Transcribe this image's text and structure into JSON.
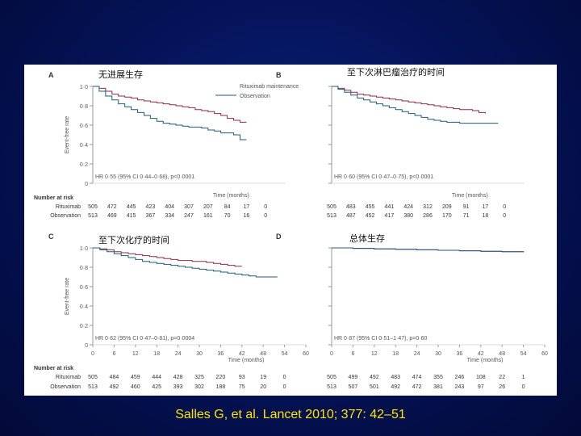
{
  "citation": "Salles G, et al. Lancet 2010; 377: 42–51",
  "colors": {
    "rituximab": "#8b2a4a",
    "observation": "#1e5a7a",
    "axis": "#999999",
    "text": "#555555"
  },
  "legend": {
    "rituximab": "Rituximab maintenance",
    "observation": "Observation"
  },
  "risk_header": "Number at risk",
  "risk_labels": {
    "rituximab": "Rituximab",
    "observation": "Observation"
  },
  "x_ticks": [
    "0",
    "6",
    "12",
    "18",
    "24",
    "30",
    "36",
    "42",
    "48",
    "54",
    "60"
  ],
  "chart_data": [
    {
      "type": "line",
      "panel": "A",
      "title": "无进展生存",
      "ylabel": "Event-free rate",
      "xlabel": "Time (months)",
      "ylim": [
        0,
        1
      ],
      "xlim": [
        0,
        60
      ],
      "y_ticks": [
        "0",
        "0·2",
        "0·4",
        "0·6",
        "0·8",
        "1·0"
      ],
      "hr": "HR 0·55 (95% CI 0·44–0·68), p<0·0001",
      "show_legend": true,
      "series": [
        {
          "name": "Rituximab maintenance",
          "x": [
            0,
            2,
            4,
            6,
            8,
            10,
            12,
            14,
            16,
            18,
            20,
            22,
            24,
            26,
            28,
            30,
            32,
            34,
            36,
            38,
            40,
            42,
            44,
            46,
            48
          ],
          "y": [
            1,
            0.98,
            0.95,
            0.92,
            0.9,
            0.89,
            0.88,
            0.86,
            0.85,
            0.84,
            0.83,
            0.82,
            0.81,
            0.8,
            0.79,
            0.78,
            0.76,
            0.75,
            0.74,
            0.72,
            0.7,
            0.67,
            0.65,
            0.63,
            0.63
          ]
        },
        {
          "name": "Observation",
          "x": [
            0,
            2,
            4,
            6,
            8,
            10,
            12,
            14,
            16,
            18,
            20,
            22,
            24,
            26,
            28,
            30,
            32,
            34,
            36,
            38,
            40,
            42,
            44,
            46,
            48
          ],
          "y": [
            1,
            0.95,
            0.9,
            0.86,
            0.82,
            0.79,
            0.76,
            0.73,
            0.7,
            0.67,
            0.64,
            0.62,
            0.61,
            0.6,
            0.59,
            0.58,
            0.58,
            0.57,
            0.55,
            0.54,
            0.52,
            0.52,
            0.5,
            0.45,
            0.45
          ]
        }
      ],
      "risk": {
        "rituximab": [
          "505",
          "472",
          "445",
          "423",
          "404",
          "307",
          "207",
          "84",
          "17",
          "0"
        ],
        "observation": [
          "513",
          "469",
          "415",
          "367",
          "334",
          "247",
          "161",
          "70",
          "16",
          "0"
        ]
      }
    },
    {
      "type": "line",
      "panel": "B",
      "title": "至下次淋巴瘤治疗的时间",
      "ylabel": "",
      "xlabel": "Time (months)",
      "ylim": [
        0,
        1
      ],
      "xlim": [
        0,
        60
      ],
      "y_ticks": [
        "",
        "",
        "",
        "",
        "",
        ""
      ],
      "hr": "HR 0·60 (95% CI 0·47–0·75), p<0·0001",
      "show_legend": false,
      "series": [
        {
          "name": "Rituximab maintenance",
          "x": [
            0,
            2,
            4,
            6,
            8,
            10,
            12,
            14,
            16,
            18,
            20,
            22,
            24,
            26,
            28,
            30,
            32,
            34,
            36,
            38,
            40,
            42,
            44,
            46,
            48
          ],
          "y": [
            1,
            0.98,
            0.96,
            0.94,
            0.92,
            0.91,
            0.9,
            0.89,
            0.88,
            0.87,
            0.86,
            0.85,
            0.84,
            0.83,
            0.82,
            0.81,
            0.8,
            0.79,
            0.78,
            0.77,
            0.76,
            0.76,
            0.75,
            0.73,
            0.72
          ]
        },
        {
          "name": "Observation",
          "x": [
            0,
            2,
            4,
            6,
            8,
            10,
            12,
            14,
            16,
            18,
            20,
            22,
            24,
            26,
            28,
            30,
            32,
            34,
            36,
            38,
            40,
            42,
            44,
            46,
            48,
            50,
            52
          ],
          "y": [
            1,
            0.97,
            0.94,
            0.91,
            0.88,
            0.86,
            0.84,
            0.82,
            0.8,
            0.78,
            0.76,
            0.74,
            0.72,
            0.7,
            0.68,
            0.66,
            0.65,
            0.64,
            0.63,
            0.63,
            0.62,
            0.62,
            0.62,
            0.62,
            0.62,
            0.62,
            0.62
          ]
        }
      ],
      "risk": {
        "rituximab": [
          "505",
          "483",
          "455",
          "441",
          "424",
          "312",
          "209",
          "91",
          "17",
          "0"
        ],
        "observation": [
          "513",
          "487",
          "452",
          "417",
          "380",
          "286",
          "170",
          "71",
          "18",
          "0"
        ]
      }
    },
    {
      "type": "line",
      "panel": "C",
      "title": "至下次化疗的时间",
      "ylabel": "Event-free rate",
      "xlabel": "Time (months)",
      "ylim": [
        0,
        1
      ],
      "xlim": [
        0,
        60
      ],
      "y_ticks": [
        "0",
        "0·2",
        "0·4",
        "0·6",
        "0·8",
        "1·0"
      ],
      "hr": "HR 0·62 (95% CI 0·47–0·81), p=0·0004",
      "show_legend": false,
      "series": [
        {
          "name": "Rituximab maintenance",
          "x": [
            0,
            2,
            4,
            6,
            8,
            10,
            12,
            14,
            16,
            18,
            20,
            22,
            24,
            26,
            28,
            30,
            32,
            34,
            36,
            38,
            40,
            42
          ],
          "y": [
            1,
            0.99,
            0.98,
            0.96,
            0.95,
            0.94,
            0.93,
            0.92,
            0.91,
            0.9,
            0.89,
            0.88,
            0.87,
            0.87,
            0.86,
            0.86,
            0.85,
            0.84,
            0.83,
            0.82,
            0.81,
            0.81
          ]
        },
        {
          "name": "Observation",
          "x": [
            0,
            2,
            4,
            6,
            8,
            10,
            12,
            14,
            16,
            18,
            20,
            22,
            24,
            26,
            28,
            30,
            32,
            34,
            36,
            38,
            40,
            42,
            44,
            46,
            48,
            50,
            52
          ],
          "y": [
            1,
            0.98,
            0.96,
            0.94,
            0.92,
            0.9,
            0.88,
            0.86,
            0.85,
            0.84,
            0.83,
            0.82,
            0.81,
            0.8,
            0.79,
            0.78,
            0.77,
            0.76,
            0.75,
            0.74,
            0.73,
            0.72,
            0.71,
            0.7,
            0.7,
            0.7,
            0.7
          ]
        }
      ],
      "risk": {
        "rituximab": [
          "505",
          "484",
          "459",
          "444",
          "428",
          "325",
          "220",
          "93",
          "19",
          "0"
        ],
        "observation": [
          "513",
          "492",
          "460",
          "425",
          "393",
          "302",
          "188",
          "75",
          "20",
          "0"
        ]
      }
    },
    {
      "type": "line",
      "panel": "D",
      "title": "总体生存",
      "ylabel": "",
      "xlabel": "Time (months)",
      "ylim": [
        0,
        1
      ],
      "xlim": [
        0,
        60
      ],
      "y_ticks": [
        "",
        "",
        "",
        "",
        "",
        ""
      ],
      "hr": "HR 0·87 (95% CI 0·51–1·47), p=0·60",
      "show_legend": false,
      "series": [
        {
          "name": "Rituximab maintenance",
          "x": [
            0,
            6,
            12,
            18,
            24,
            30,
            36,
            42,
            48,
            54
          ],
          "y": [
            1,
            0.995,
            0.99,
            0.985,
            0.98,
            0.975,
            0.97,
            0.965,
            0.96,
            0.955
          ]
        },
        {
          "name": "Observation",
          "x": [
            0,
            6,
            12,
            18,
            24,
            30,
            36,
            42,
            48,
            54
          ],
          "y": [
            1,
            0.995,
            0.99,
            0.985,
            0.98,
            0.975,
            0.97,
            0.965,
            0.96,
            0.955
          ]
        }
      ],
      "risk": {
        "rituximab": [
          "505",
          "499",
          "492",
          "483",
          "474",
          "355",
          "246",
          "108",
          "22",
          "1"
        ],
        "observation": [
          "513",
          "507",
          "501",
          "492",
          "472",
          "381",
          "243",
          "97",
          "26",
          "0"
        ]
      }
    }
  ]
}
